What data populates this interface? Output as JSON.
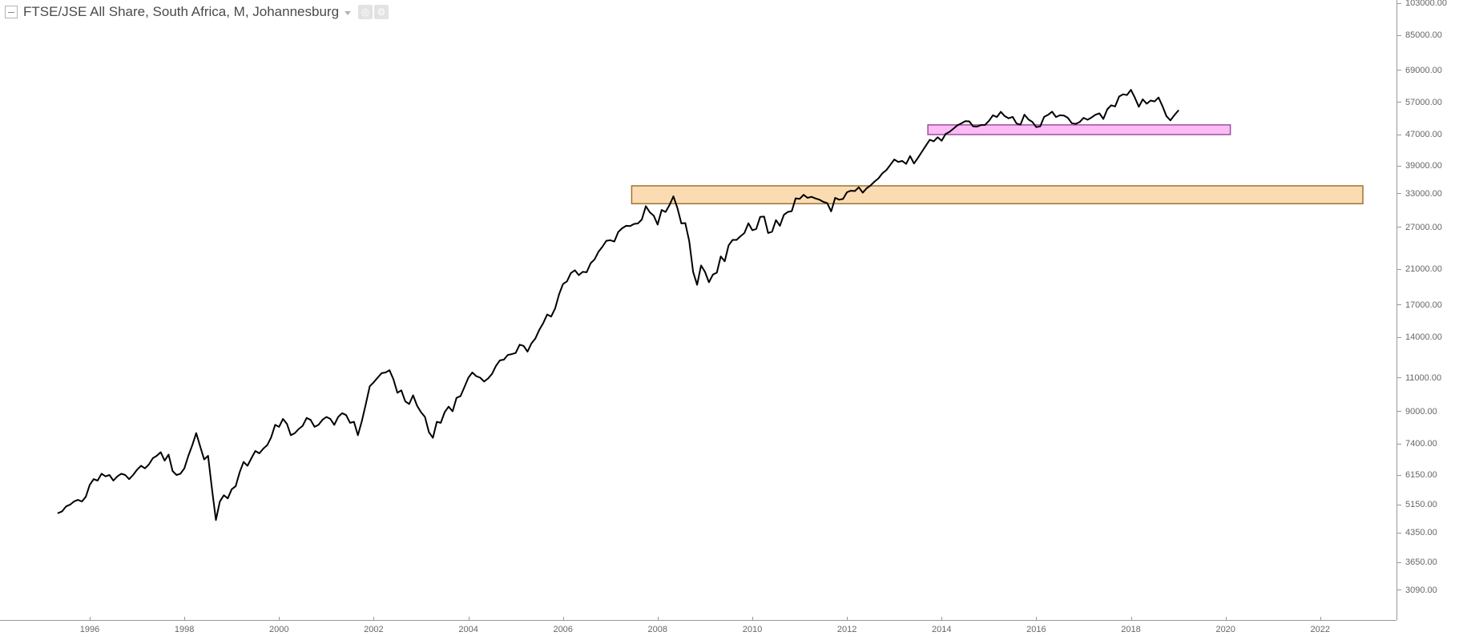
{
  "legend": {
    "title": "FTSE/JSE All Share, South Africa, M, Johannesburg",
    "buttons": [
      {
        "id": "visibility",
        "icon": "eye-icon",
        "glyph": "◎"
      },
      {
        "id": "settings",
        "icon": "gear-icon",
        "glyph": "⚙"
      }
    ]
  },
  "colors": {
    "background": "#ffffff",
    "price_line": "#000000",
    "axis_line": "#989898",
    "axis_text": "#666666",
    "title_text": "#4a4a4a"
  },
  "chart_data": {
    "type": "line",
    "title": "FTSE/JSE All Share, South Africa, M, Johannesburg",
    "symbol": "FTSE/JSE All Share",
    "market": "South Africa",
    "interval": "M",
    "exchange": "Johannesburg",
    "y_scale": "log",
    "grid": false,
    "legend_position": "top-left",
    "x_axis": {
      "unit": "year",
      "ticks": [
        1996,
        1998,
        2000,
        2002,
        2004,
        2006,
        2008,
        2010,
        2012,
        2014,
        2016,
        2018,
        2020,
        2022
      ]
    },
    "y_axis": {
      "ticks": [
        {
          "value": 103000,
          "label": "103000.00"
        },
        {
          "value": 85000,
          "label": "85000.00"
        },
        {
          "value": 69000,
          "label": "69000.00"
        },
        {
          "value": 57000,
          "label": "57000.00"
        },
        {
          "value": 47000,
          "label": "47000.00"
        },
        {
          "value": 39000,
          "label": "39000.00"
        },
        {
          "value": 33000,
          "label": "33000.00"
        },
        {
          "value": 27000,
          "label": "27000.00"
        },
        {
          "value": 21000,
          "label": "21000.00"
        },
        {
          "value": 17000,
          "label": "17000.00"
        },
        {
          "value": 14000,
          "label": "14000.00"
        },
        {
          "value": 11000,
          "label": "11000.00"
        },
        {
          "value": 9000,
          "label": "9000.00"
        },
        {
          "value": 7400,
          "label": "7400.00"
        },
        {
          "value": 6150,
          "label": "6150.00"
        },
        {
          "value": 5150,
          "label": "5150.00"
        },
        {
          "value": 4350,
          "label": "4350.00"
        },
        {
          "value": 3650,
          "label": "3650.00"
        },
        {
          "value": 3090,
          "label": "3090.00"
        }
      ]
    },
    "zones": [
      {
        "name": "orange-rectangle",
        "from_time": 2007.45,
        "to_time": 2022.9,
        "top_value": 34600,
        "bottom_value": 31100,
        "fill": "#FBDCB2",
        "border": "#9B7434"
      },
      {
        "name": "pink-rectangle",
        "from_time": 2013.71,
        "to_time": 2020.1,
        "top_value": 49800,
        "bottom_value": 47000,
        "fill": "#FBBCF5",
        "border": "#9C4F9B"
      }
    ],
    "series": [
      {
        "name": "FTSE/JSE All Share monthly close",
        "color": "#000000",
        "start_year": 1995,
        "start_month": 5,
        "step_months": 1,
        "values": [
          4900,
          4950,
          5100,
          5150,
          5250,
          5300,
          5250,
          5400,
          5800,
          6000,
          5950,
          6200,
          6100,
          6150,
          5950,
          6100,
          6200,
          6150,
          6000,
          6150,
          6350,
          6500,
          6400,
          6550,
          6800,
          6900,
          7050,
          6700,
          6950,
          6300,
          6150,
          6200,
          6400,
          6900,
          7350,
          7900,
          7300,
          6750,
          6900,
          5650,
          4700,
          5250,
          5450,
          5350,
          5650,
          5750,
          6250,
          6650,
          6500,
          6800,
          7100,
          7000,
          7200,
          7350,
          7700,
          8300,
          8200,
          8600,
          8350,
          7800,
          7900,
          8100,
          8250,
          8650,
          8550,
          8200,
          8300,
          8550,
          8700,
          8600,
          8300,
          8700,
          8900,
          8800,
          8400,
          8450,
          7800,
          8500,
          9400,
          10450,
          10700,
          11000,
          11300,
          11350,
          11500,
          10900,
          10050,
          10200,
          9550,
          9400,
          9900,
          9300,
          8950,
          8700,
          7950,
          7680,
          8450,
          8400,
          8950,
          9250,
          9000,
          9750,
          9850,
          10390,
          11000,
          11350,
          11100,
          11000,
          10750,
          10950,
          11250,
          11800,
          12200,
          12250,
          12600,
          12660,
          12750,
          13400,
          13300,
          12850,
          13500,
          13900,
          14650,
          15250,
          16050,
          15850,
          16650,
          18100,
          19250,
          19550,
          20550,
          20900,
          20300,
          20700,
          20650,
          21800,
          22300,
          23350,
          24050,
          24920,
          25000,
          24800,
          26250,
          26850,
          27250,
          27200,
          27550,
          27650,
          28300,
          30650,
          29550,
          28960,
          27450,
          29950,
          29600,
          30850,
          32500,
          30300,
          27650,
          27700,
          24900,
          20700,
          19150,
          21510,
          20700,
          19450,
          20360,
          20600,
          22700,
          22050,
          24250,
          25050,
          25050,
          25600,
          26100,
          27670,
          26550,
          26750,
          28750,
          28800,
          26100,
          26300,
          28200,
          27250,
          29100,
          29600,
          29750,
          32120,
          32000,
          32800,
          32200,
          32400,
          32100,
          31850,
          31450,
          31200,
          29700,
          32200,
          31850,
          31990,
          33300,
          33600,
          33550,
          34300,
          33200,
          34100,
          34700,
          35500,
          36200,
          37300,
          38000,
          39250,
          40500,
          39900,
          40150,
          39450,
          41350,
          39550,
          40900,
          42400,
          44000,
          45550,
          45150,
          46260,
          45300,
          47150,
          47770,
          48700,
          49650,
          50250,
          50900,
          50850,
          49350,
          49300,
          49750,
          49770,
          51000,
          52750,
          52180,
          53850,
          52500,
          51800,
          52250,
          50200,
          49850,
          52950,
          51450,
          50690,
          49150,
          49350,
          52250,
          52900,
          53900,
          52200,
          52750,
          52650,
          51950,
          50300,
          50100,
          50650,
          51950,
          51350,
          52050,
          52900,
          53350,
          51600,
          54650,
          56000,
          55600,
          59000,
          59800,
          59500,
          61400,
          58550,
          55500,
          58000,
          56500,
          57600,
          57300,
          58650,
          55700,
          52500,
          51150,
          52740,
          54220
        ]
      }
    ]
  }
}
